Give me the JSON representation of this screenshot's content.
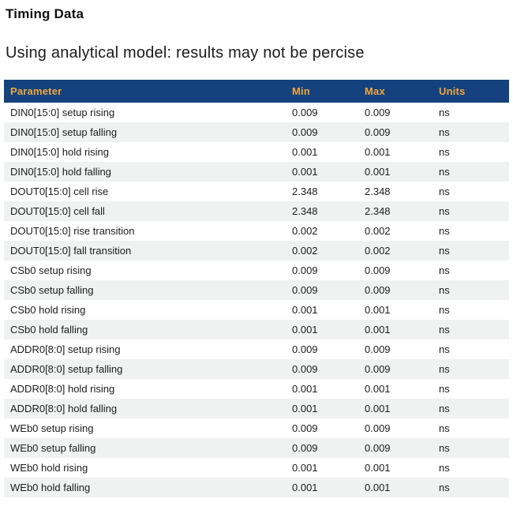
{
  "page": {
    "title": "Timing Data",
    "subtitle": "Using analytical model: results may not be percise"
  },
  "colors": {
    "table_header_bg": "#15427e",
    "table_header_text": "#f0a63c",
    "row_stripe": "#f0f1f1",
    "body_text": "#1c1c1c"
  },
  "table": {
    "columns": [
      "Parameter",
      "Min",
      "Max",
      "Units"
    ],
    "rows": [
      {
        "parameter": "DIN0[15:0] setup rising",
        "min": "0.009",
        "max": "0.009",
        "units": "ns"
      },
      {
        "parameter": "DIN0[15:0] setup falling",
        "min": "0.009",
        "max": "0.009",
        "units": "ns"
      },
      {
        "parameter": "DIN0[15:0] hold rising",
        "min": "0.001",
        "max": "0.001",
        "units": "ns"
      },
      {
        "parameter": "DIN0[15:0] hold falling",
        "min": "0.001",
        "max": "0.001",
        "units": "ns"
      },
      {
        "parameter": "DOUT0[15:0] cell rise",
        "min": "2.348",
        "max": "2.348",
        "units": "ns"
      },
      {
        "parameter": "DOUT0[15:0] cell fall",
        "min": "2.348",
        "max": "2.348",
        "units": "ns"
      },
      {
        "parameter": "DOUT0[15:0] rise transition",
        "min": "0.002",
        "max": "0.002",
        "units": "ns"
      },
      {
        "parameter": "DOUT0[15:0] fall transition",
        "min": "0.002",
        "max": "0.002",
        "units": "ns"
      },
      {
        "parameter": "CSb0 setup rising",
        "min": "0.009",
        "max": "0.009",
        "units": "ns"
      },
      {
        "parameter": "CSb0 setup falling",
        "min": "0.009",
        "max": "0.009",
        "units": "ns"
      },
      {
        "parameter": "CSb0 hold rising",
        "min": "0.001",
        "max": "0.001",
        "units": "ns"
      },
      {
        "parameter": "CSb0 hold falling",
        "min": "0.001",
        "max": "0.001",
        "units": "ns"
      },
      {
        "parameter": "ADDR0[8:0] setup rising",
        "min": "0.009",
        "max": "0.009",
        "units": "ns"
      },
      {
        "parameter": "ADDR0[8:0] setup falling",
        "min": "0.009",
        "max": "0.009",
        "units": "ns"
      },
      {
        "parameter": "ADDR0[8:0] hold rising",
        "min": "0.001",
        "max": "0.001",
        "units": "ns"
      },
      {
        "parameter": "ADDR0[8:0] hold falling",
        "min": "0.001",
        "max": "0.001",
        "units": "ns"
      },
      {
        "parameter": "WEb0 setup rising",
        "min": "0.009",
        "max": "0.009",
        "units": "ns"
      },
      {
        "parameter": "WEb0 setup falling",
        "min": "0.009",
        "max": "0.009",
        "units": "ns"
      },
      {
        "parameter": "WEb0 hold rising",
        "min": "0.001",
        "max": "0.001",
        "units": "ns"
      },
      {
        "parameter": "WEb0 hold falling",
        "min": "0.001",
        "max": "0.001",
        "units": "ns"
      }
    ]
  }
}
